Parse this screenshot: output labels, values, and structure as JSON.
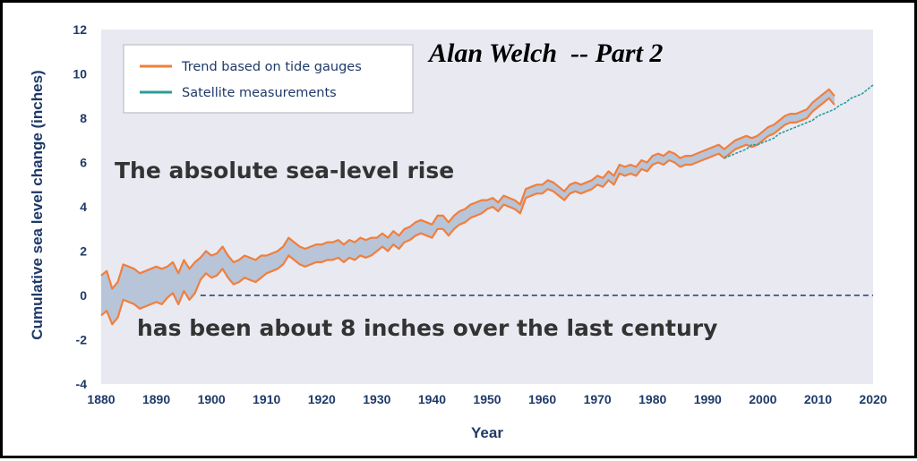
{
  "chart_data": {
    "type": "line",
    "title": "",
    "xlabel": "Year",
    "ylabel": "Cumulative sea level change (inches)",
    "xlim": [
      1880,
      2020
    ],
    "ylim": [
      -4,
      12
    ],
    "x_ticks": [
      "1880",
      "1890",
      "1900",
      "1910",
      "1920",
      "1930",
      "1940",
      "1950",
      "1960",
      "1970",
      "1980",
      "1990",
      "2000",
      "2010",
      "2020"
    ],
    "y_ticks": [
      "-4",
      "-2",
      "0",
      "2",
      "4",
      "6",
      "8",
      "10",
      "12"
    ],
    "grid": false,
    "legend_position": "top-left",
    "reference_line": {
      "y": 0,
      "x_start": 1898,
      "x_end": 2020,
      "style": "dashed"
    },
    "series": [
      {
        "name": "Trend based on tide gauges",
        "color": "#f07f3c",
        "band_color": "#b8c4d8",
        "x": [
          1880,
          1881,
          1882,
          1883,
          1884,
          1885,
          1886,
          1887,
          1888,
          1889,
          1890,
          1891,
          1892,
          1893,
          1894,
          1895,
          1896,
          1897,
          1898,
          1899,
          1900,
          1901,
          1902,
          1903,
          1904,
          1905,
          1906,
          1907,
          1908,
          1909,
          1910,
          1911,
          1912,
          1913,
          1914,
          1915,
          1916,
          1917,
          1918,
          1919,
          1920,
          1921,
          1922,
          1923,
          1924,
          1925,
          1926,
          1927,
          1928,
          1929,
          1930,
          1931,
          1932,
          1933,
          1934,
          1935,
          1936,
          1937,
          1938,
          1939,
          1940,
          1941,
          1942,
          1943,
          1944,
          1945,
          1946,
          1947,
          1948,
          1949,
          1950,
          1951,
          1952,
          1953,
          1954,
          1955,
          1956,
          1957,
          1958,
          1959,
          1960,
          1961,
          1962,
          1963,
          1964,
          1965,
          1966,
          1967,
          1968,
          1969,
          1970,
          1971,
          1972,
          1973,
          1974,
          1975,
          1976,
          1977,
          1978,
          1979,
          1980,
          1981,
          1982,
          1983,
          1984,
          1985,
          1986,
          1987,
          1988,
          1989,
          1990,
          1991,
          1992,
          1993,
          1994,
          1995,
          1996,
          1997,
          1998,
          1999,
          2000,
          2001,
          2002,
          2003,
          2004,
          2005,
          2006,
          2007,
          2008,
          2009,
          2010,
          2011,
          2012,
          2013
        ],
        "values": [
          0.0,
          0.2,
          -0.5,
          -0.2,
          0.6,
          0.5,
          0.4,
          0.2,
          0.3,
          0.4,
          0.5,
          0.4,
          0.6,
          0.8,
          0.3,
          0.9,
          0.5,
          0.8,
          1.2,
          1.5,
          1.3,
          1.4,
          1.7,
          1.3,
          1.0,
          1.1,
          1.3,
          1.2,
          1.1,
          1.3,
          1.4,
          1.5,
          1.6,
          1.8,
          2.2,
          2.0,
          1.8,
          1.7,
          1.8,
          1.9,
          1.9,
          2.0,
          2.0,
          2.1,
          1.9,
          2.1,
          2.0,
          2.2,
          2.1,
          2.2,
          2.3,
          2.5,
          2.3,
          2.6,
          2.4,
          2.7,
          2.8,
          3.0,
          3.1,
          3.0,
          2.9,
          3.3,
          3.3,
          3.0,
          3.3,
          3.5,
          3.6,
          3.8,
          3.9,
          4.0,
          4.1,
          4.2,
          4.0,
          4.3,
          4.2,
          4.1,
          3.9,
          4.6,
          4.7,
          4.8,
          4.8,
          5.0,
          4.9,
          4.7,
          4.5,
          4.8,
          4.9,
          4.8,
          4.9,
          5.0,
          5.2,
          5.1,
          5.4,
          5.2,
          5.7,
          5.6,
          5.7,
          5.6,
          5.9,
          5.8,
          6.1,
          6.2,
          6.1,
          6.3,
          6.2,
          6.0,
          6.1,
          6.1,
          6.2,
          6.3,
          6.4,
          6.5,
          6.6,
          6.4,
          6.6,
          6.8,
          6.9,
          7.0,
          6.9,
          7.0,
          7.2,
          7.4,
          7.5,
          7.7,
          7.9,
          8.0,
          8.0,
          8.1,
          8.2,
          8.5,
          8.7,
          8.9,
          9.1,
          8.8
        ],
        "band": [
          0.9,
          0.9,
          0.8,
          0.8,
          0.8,
          0.8,
          0.8,
          0.8,
          0.8,
          0.8,
          0.8,
          0.8,
          0.7,
          0.7,
          0.7,
          0.7,
          0.7,
          0.7,
          0.5,
          0.5,
          0.5,
          0.5,
          0.5,
          0.5,
          0.5,
          0.5,
          0.5,
          0.5,
          0.5,
          0.5,
          0.4,
          0.4,
          0.4,
          0.4,
          0.4,
          0.4,
          0.4,
          0.4,
          0.4,
          0.4,
          0.4,
          0.4,
          0.4,
          0.4,
          0.4,
          0.4,
          0.4,
          0.4,
          0.4,
          0.4,
          0.3,
          0.3,
          0.3,
          0.3,
          0.3,
          0.3,
          0.3,
          0.3,
          0.3,
          0.3,
          0.3,
          0.3,
          0.3,
          0.3,
          0.3,
          0.3,
          0.3,
          0.3,
          0.3,
          0.3,
          0.2,
          0.2,
          0.2,
          0.2,
          0.2,
          0.2,
          0.2,
          0.2,
          0.2,
          0.2,
          0.2,
          0.2,
          0.2,
          0.2,
          0.2,
          0.2,
          0.2,
          0.2,
          0.2,
          0.2,
          0.2,
          0.2,
          0.2,
          0.2,
          0.2,
          0.2,
          0.2,
          0.2,
          0.2,
          0.2,
          0.2,
          0.2,
          0.2,
          0.2,
          0.2,
          0.2,
          0.2,
          0.2,
          0.2,
          0.2,
          0.2,
          0.2,
          0.2,
          0.2,
          0.2,
          0.2,
          0.2,
          0.2,
          0.2,
          0.2,
          0.2,
          0.2,
          0.2,
          0.2,
          0.2,
          0.2,
          0.2,
          0.2,
          0.2,
          0.2,
          0.2,
          0.2,
          0.2,
          0.2
        ]
      },
      {
        "name": "Satellite measurements",
        "color": "#2a9d9b",
        "x": [
          1993,
          1994,
          1995,
          1996,
          1997,
          1998,
          1999,
          2000,
          2001,
          2002,
          2003,
          2004,
          2005,
          2006,
          2007,
          2008,
          2009,
          2010,
          2011,
          2012,
          2013,
          2014,
          2015,
          2016,
          2017,
          2018,
          2019,
          2020
        ],
        "values": [
          6.2,
          6.3,
          6.4,
          6.5,
          6.6,
          6.8,
          6.8,
          6.9,
          7.0,
          7.1,
          7.3,
          7.4,
          7.5,
          7.6,
          7.7,
          7.8,
          7.9,
          8.1,
          8.2,
          8.3,
          8.4,
          8.6,
          8.7,
          8.9,
          9.0,
          9.1,
          9.3,
          9.5
        ]
      }
    ]
  },
  "legend": {
    "items": [
      {
        "label": "Trend based on tide gauges",
        "color": "#f07f3c"
      },
      {
        "label": "Satellite measurements",
        "color": "#2a9d9b"
      }
    ]
  },
  "overlay": {
    "author": "Alan Welch  -- Part 2",
    "line1": "The absolute sea-level rise",
    "line2": "has been about 8 inches over the last century"
  }
}
